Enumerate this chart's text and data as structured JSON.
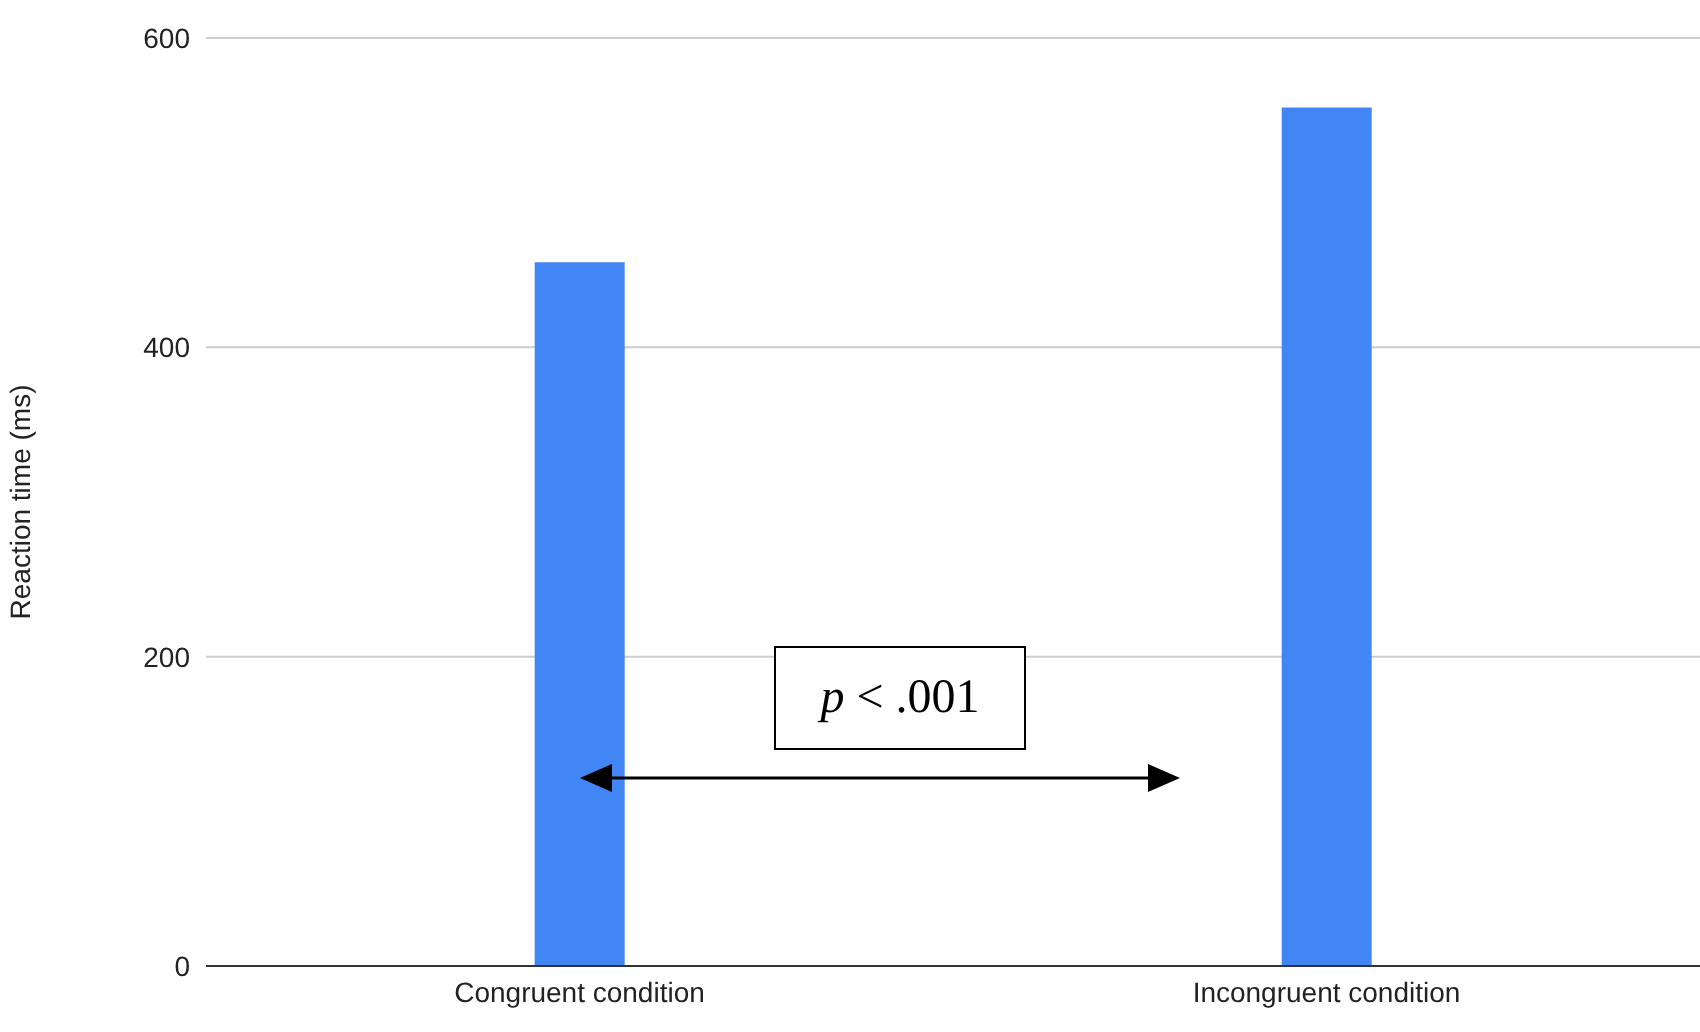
{
  "chart_data": {
    "type": "bar",
    "ylabel": "Reaction time (ms)",
    "categories": [
      "Congruent condition",
      "Incongruent condition"
    ],
    "values": [
      455,
      555
    ],
    "color": "#4285f4",
    "ylim": [
      0,
      600
    ],
    "yticks": [
      0,
      200,
      400,
      600
    ],
    "grid": "y",
    "annotations": [
      "p < .001"
    ]
  }
}
